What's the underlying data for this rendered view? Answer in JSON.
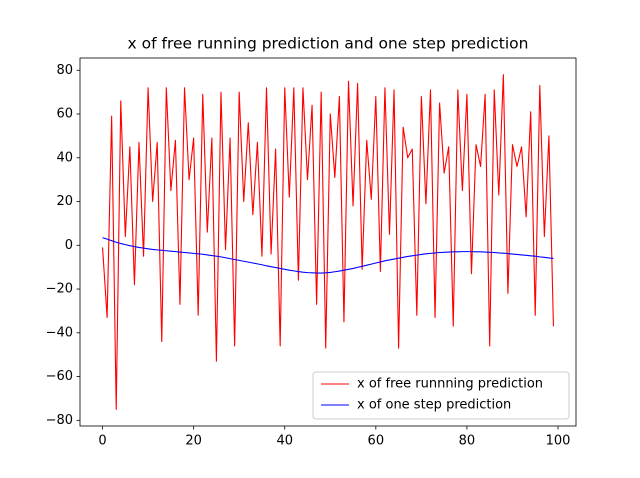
{
  "chart_data": {
    "type": "line",
    "title": "x of free running prediction and one step prediction",
    "x": [
      0,
      1,
      2,
      3,
      4,
      5,
      6,
      7,
      8,
      9,
      10,
      11,
      12,
      13,
      14,
      15,
      16,
      17,
      18,
      19,
      20,
      21,
      22,
      23,
      24,
      25,
      26,
      27,
      28,
      29,
      30,
      31,
      32,
      33,
      34,
      35,
      36,
      37,
      38,
      39,
      40,
      41,
      42,
      43,
      44,
      45,
      46,
      47,
      48,
      49,
      50,
      51,
      52,
      53,
      54,
      55,
      56,
      57,
      58,
      59,
      60,
      61,
      62,
      63,
      64,
      65,
      66,
      67,
      68,
      69,
      70,
      71,
      72,
      73,
      74,
      75,
      76,
      77,
      78,
      79,
      80,
      81,
      82,
      83,
      84,
      85,
      86,
      87,
      88,
      89,
      90,
      91,
      92,
      93,
      94,
      95,
      96,
      97,
      98,
      99
    ],
    "series": [
      {
        "name": "x of free runnning prediction",
        "color": "#ff0000",
        "values": [
          -1,
          -33,
          59,
          -75,
          66,
          4,
          45,
          -18,
          47,
          -5,
          72,
          20,
          47,
          -44,
          72,
          25,
          48,
          -27,
          72,
          30,
          49,
          -32,
          69,
          6,
          49,
          -53,
          70,
          -2,
          49,
          -46,
          70,
          20,
          56,
          14,
          47,
          -5,
          72,
          -4,
          44,
          -46,
          72,
          22,
          72,
          -16,
          72,
          30,
          64,
          -27,
          70,
          -47,
          60,
          31,
          68,
          -35,
          75,
          18,
          74,
          -11,
          48,
          21,
          68,
          -12,
          72,
          5,
          71,
          -47,
          54,
          40,
          44,
          -32,
          68,
          19,
          71,
          -33,
          65,
          33,
          45,
          -37,
          71,
          25,
          69,
          -13,
          46,
          36,
          69,
          -46,
          71,
          23,
          78,
          -22,
          46,
          36,
          45,
          13,
          61,
          -32,
          73,
          4,
          50,
          -37
        ]
      },
      {
        "name": "x of one step prediction",
        "color": "#0000ff",
        "values": [
          3.5,
          2.8,
          2.1,
          1.4,
          0.8,
          0.3,
          -0.2,
          -0.6,
          -1.0,
          -1.3,
          -1.6,
          -1.9,
          -2.1,
          -2.3,
          -2.5,
          -2.7,
          -2.9,
          -3.1,
          -3.3,
          -3.5,
          -3.7,
          -3.9,
          -4.1,
          -4.4,
          -4.7,
          -5.0,
          -5.3,
          -5.7,
          -6.1,
          -6.5,
          -6.9,
          -7.3,
          -7.7,
          -8.1,
          -8.5,
          -8.9,
          -9.4,
          -9.8,
          -10.2,
          -10.6,
          -11.0,
          -11.4,
          -11.7,
          -12.0,
          -12.3,
          -12.5,
          -12.6,
          -12.7,
          -12.7,
          -12.6,
          -12.4,
          -12.1,
          -11.8,
          -11.4,
          -11.0,
          -10.6,
          -10.1,
          -9.6,
          -9.1,
          -8.6,
          -8.1,
          -7.6,
          -7.1,
          -6.7,
          -6.3,
          -5.9,
          -5.5,
          -5.1,
          -4.8,
          -4.5,
          -4.2,
          -3.9,
          -3.7,
          -3.5,
          -3.3,
          -3.2,
          -3.1,
          -3.0,
          -3.0,
          -2.9,
          -2.9,
          -2.9,
          -3.0,
          -3.0,
          -3.1,
          -3.2,
          -3.3,
          -3.5,
          -3.6,
          -3.8,
          -4.0,
          -4.2,
          -4.4,
          -4.6,
          -4.8,
          -5.0,
          -5.3,
          -5.5,
          -5.8,
          -6.0
        ]
      }
    ],
    "xlim": [
      -4.95,
      103.95
    ],
    "xticks": [
      0,
      20,
      40,
      60,
      80,
      100
    ],
    "ylim": [
      -82.6,
      85.6
    ],
    "yticks": [
      {
        "value": -80,
        "label": "−80"
      },
      {
        "value": -60,
        "label": "−60"
      },
      {
        "value": -40,
        "label": "−40"
      },
      {
        "value": -20,
        "label": "−20"
      },
      0,
      20,
      40,
      60,
      80
    ],
    "grid": false,
    "legend": "lower right"
  }
}
